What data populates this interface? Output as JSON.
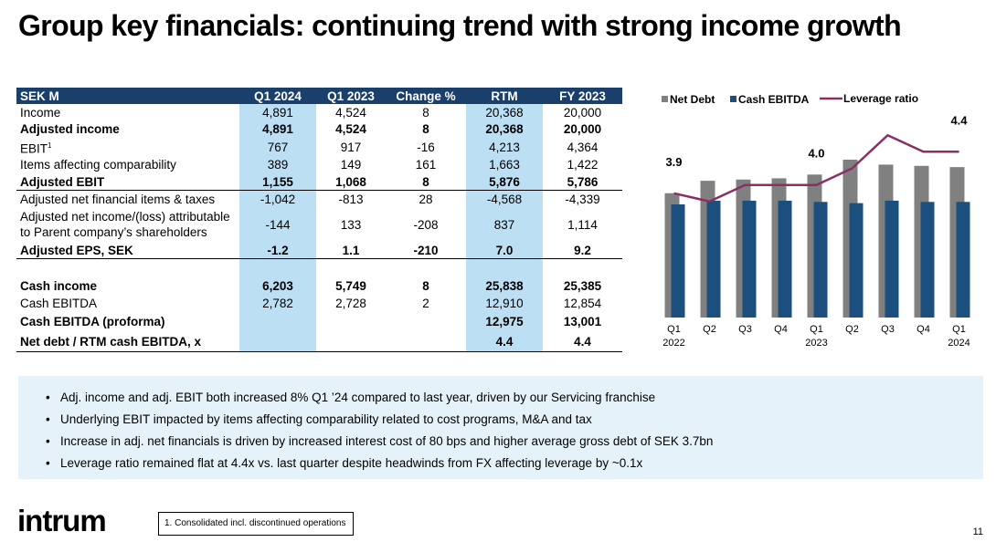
{
  "title": "Group key financials: continuing trend with strong income growth",
  "table": {
    "headers": [
      "SEK M",
      "Q1 2024",
      "Q1 2023",
      "Change %",
      "RTM",
      "FY 2023"
    ],
    "rows": [
      {
        "label": "Income",
        "values": [
          "4,891",
          "4,524",
          "8",
          "20,368",
          "20,000"
        ]
      },
      {
        "label": "Adjusted income",
        "values": [
          "4,891",
          "4,524",
          "8",
          "20,368",
          "20,000"
        ]
      },
      {
        "label": "EBIT",
        "footnote_mark": "1",
        "values": [
          "767",
          "917",
          "-16",
          "4,213",
          "4,364"
        ]
      },
      {
        "label": "Items affecting comparability",
        "values": [
          "389",
          "149",
          "161",
          "1,663",
          "1,422"
        ]
      },
      {
        "label": "Adjusted EBIT",
        "values": [
          "1,155",
          "1,068",
          "8",
          "5,876",
          "5,786"
        ]
      },
      {
        "label": "Adjusted net financial items & taxes",
        "values": [
          "-1,042",
          "-813",
          "28",
          "-4,568",
          "-4,339"
        ]
      },
      {
        "label_line1": "Adjusted net income/(loss) attributable",
        "label_line2": "to Parent company’s shareholders",
        "values": [
          "-144",
          "133",
          "-208",
          "837",
          "1,114"
        ]
      },
      {
        "label": "Adjusted EPS, SEK",
        "values": [
          "-1.2",
          "1.1",
          "-210",
          "7.0",
          "9.2"
        ]
      },
      {
        "label": "Cash income",
        "values": [
          "6,203",
          "5,749",
          "8",
          "25,838",
          "25,385"
        ]
      },
      {
        "label": "Cash EBITDA",
        "values": [
          "2,782",
          "2,728",
          "2",
          "12,910",
          "12,854"
        ]
      },
      {
        "label": "Cash EBITDA (proforma)",
        "values": [
          "",
          "",
          "",
          "12,975",
          "13,001"
        ]
      },
      {
        "label": "Net debt / RTM cash EBITDA, x",
        "values": [
          "",
          "",
          "",
          "4.4",
          "4.4"
        ]
      }
    ]
  },
  "chart_data": {
    "type": "bar",
    "categories": [
      "Q1 2022",
      "Q2",
      "Q3",
      "Q4",
      "Q1 2023",
      "Q2",
      "Q3",
      "Q4",
      "Q1 2024"
    ],
    "tick_labels_line1": [
      "Q1",
      "Q2",
      "Q3",
      "Q4",
      "Q1",
      "Q2",
      "Q3",
      "Q4",
      "Q1"
    ],
    "tick_labels_line2": [
      "2022",
      "",
      "",
      "",
      "2023",
      "",
      "",
      "",
      "2024"
    ],
    "series": [
      {
        "name": "Net Debt",
        "type": "bar",
        "color": "#808080",
        "values": [
          100,
          110,
          111,
          112,
          115,
          127,
          123,
          122,
          121
        ]
      },
      {
        "name": "Cash EBITDA",
        "type": "bar",
        "color": "#1b4f7e",
        "values": [
          91,
          94,
          94,
          94,
          93,
          92,
          94,
          93,
          93
        ]
      },
      {
        "name": "Leverage ratio",
        "type": "line",
        "color": "#8b2f62",
        "values": [
          3.9,
          3.8,
          4.0,
          4.0,
          4.0,
          4.2,
          4.6,
          4.4,
          4.4
        ]
      }
    ],
    "data_labels": [
      {
        "index": 0,
        "text": "3.9"
      },
      {
        "index": 4,
        "text": "4.0"
      },
      {
        "index": 8,
        "text": "4.4"
      }
    ],
    "legend": [
      "Net Debt",
      "Cash EBITDA",
      "Leverage ratio"
    ],
    "legend_placement": "top",
    "bar_ylim": [
      0,
      160
    ],
    "line_ylim": [
      2.4,
      4.8
    ]
  },
  "bullets": [
    "Adj. income and adj. EBIT both increased 8% Q1 ’24 compared to last year, driven by our Servicing franchise",
    "Underlying EBIT impacted by items affecting comparability related to cost programs, M&A and tax",
    "Increase in adj. net financials is driven by increased interest cost of 80 bps and higher average gross debt of SEK 3.7bn",
    "Leverage ratio remained flat at 4.4x vs. last quarter despite headwinds from FX affecting leverage by ~0.1x"
  ],
  "footer": {
    "logo": "intrum",
    "footnote": "1. Consolidated incl. discontinued operations",
    "page_number": "11"
  }
}
